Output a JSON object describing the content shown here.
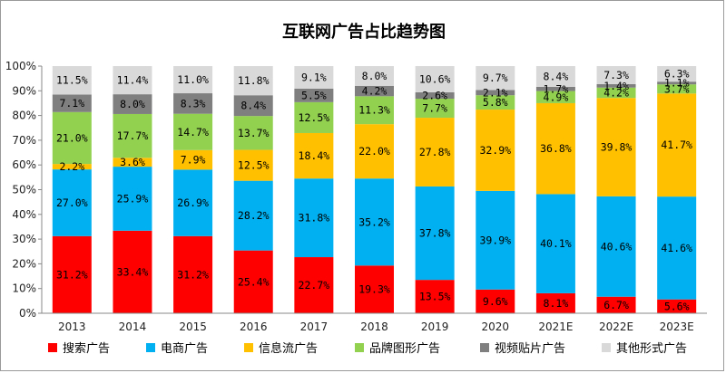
{
  "chart_data": {
    "type": "bar",
    "stacked": true,
    "title": "互联网广告占比趋势图",
    "categories": [
      "2013",
      "2014",
      "2015",
      "2016",
      "2017",
      "2018",
      "2019",
      "2020",
      "2021E",
      "2022E",
      "2023E"
    ],
    "ylim": [
      0,
      100
    ],
    "yticks": [
      "0%",
      "10%",
      "20%",
      "30%",
      "40%",
      "50%",
      "60%",
      "70%",
      "80%",
      "90%",
      "100%"
    ],
    "grid": false,
    "legend_position": "bottom",
    "series": [
      {
        "name": "搜索广告",
        "color": "#ff0000",
        "values": [
          31.2,
          33.4,
          31.2,
          25.4,
          22.7,
          19.3,
          13.5,
          9.6,
          8.1,
          6.7,
          5.6
        ],
        "labels": [
          "31.2%",
          "33.4%",
          "31.2%",
          "25.4%",
          "22.7%",
          "19.3%",
          "13.5%",
          "9.6%",
          "8.1%",
          "6.7%",
          "5.6%"
        ]
      },
      {
        "name": "电商广告",
        "color": "#00b0f0",
        "values": [
          27.0,
          25.9,
          26.9,
          28.2,
          31.8,
          35.2,
          37.8,
          39.9,
          40.1,
          40.6,
          41.6
        ],
        "labels": [
          "27.0%",
          "25.9%",
          "26.9%",
          "28.2%",
          "31.8%",
          "35.2%",
          "37.8%",
          "39.9%",
          "40.1%",
          "40.6%",
          "41.6%"
        ]
      },
      {
        "name": "信息流广告",
        "color": "#ffc000",
        "values": [
          2.2,
          3.6,
          7.9,
          12.5,
          18.4,
          22.0,
          27.8,
          32.9,
          36.8,
          39.8,
          41.7
        ],
        "labels": [
          "2.2%",
          "3.6%",
          "7.9%",
          "12.5%",
          "18.4%",
          "22.0%",
          "27.8%",
          "32.9%",
          "36.8%",
          "39.8%",
          "41.7%"
        ]
      },
      {
        "name": "品牌图形广告",
        "color": "#92d050",
        "values": [
          21.0,
          17.7,
          14.7,
          13.7,
          12.5,
          11.3,
          7.7,
          5.8,
          4.9,
          4.2,
          3.7
        ],
        "labels": [
          "21.0%",
          "17.7%",
          "14.7%",
          "13.7%",
          "12.5%",
          "11.3%",
          "7.7%",
          "5.8%",
          "4.9%",
          "4.2%",
          "3.7%"
        ]
      },
      {
        "name": "视频贴片广告",
        "color": "#7f7f7f",
        "values": [
          7.1,
          8.0,
          8.3,
          8.4,
          5.5,
          4.2,
          2.6,
          2.1,
          1.7,
          1.4,
          1.1
        ],
        "labels": [
          "7.1%",
          "8.0%",
          "8.3%",
          "8.4%",
          "5.5%",
          "4.2%",
          "2.6%",
          "2.1%",
          "1.7%",
          "1.4%",
          "1.1%"
        ]
      },
      {
        "name": "其他形式广告",
        "color": "#d9d9d9",
        "values": [
          11.5,
          11.4,
          11.0,
          11.8,
          9.1,
          8.0,
          10.6,
          9.7,
          8.4,
          7.3,
          6.3
        ],
        "labels": [
          "11.5%",
          "11.4%",
          "11.0%",
          "11.8%",
          "9.1%",
          "8.0%",
          "10.6%",
          "9.7%",
          "8.4%",
          "7.3%",
          "6.3%"
        ]
      }
    ]
  }
}
